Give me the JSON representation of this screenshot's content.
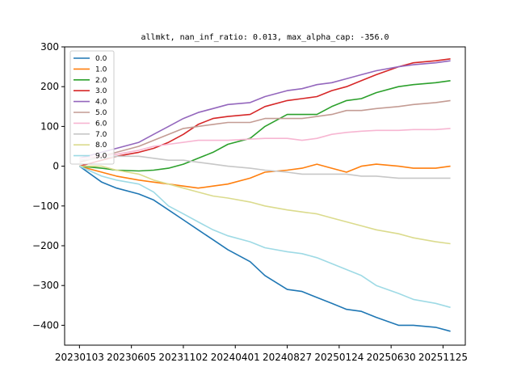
{
  "chart_data": {
    "type": "line",
    "title": "allmkt, nan_inf_ratio: 0.013, max_alpha_cap: -356.0",
    "xlabel": "",
    "ylabel": "",
    "x": [
      0,
      3,
      5,
      8,
      10,
      12,
      14,
      16,
      18,
      20,
      23,
      25,
      28,
      30,
      32,
      34,
      36,
      38,
      40,
      43,
      45,
      48,
      50
    ],
    "xlim": [
      -2,
      52
    ],
    "ylim": [
      -450,
      300
    ],
    "xticks": [
      0,
      7,
      14,
      21,
      28,
      35,
      42,
      49
    ],
    "xtick_labels": [
      "20230103",
      "20230605",
      "20231102",
      "20240401",
      "20240827",
      "20250124",
      "20250630",
      "20251125"
    ],
    "yticks": [
      -400,
      -300,
      -200,
      -100,
      0,
      100,
      200,
      300
    ],
    "legend": {
      "position": "top-left"
    },
    "grid": false,
    "series": [
      {
        "name": "0.0",
        "color": "#1f77b4",
        "values": [
          0,
          -40,
          -55,
          -70,
          -85,
          -110,
          -135,
          -160,
          -185,
          -210,
          -240,
          -275,
          -310,
          -315,
          -330,
          -345,
          -360,
          -365,
          -380,
          -400,
          -400,
          -405,
          -415
        ]
      },
      {
        "name": "1.0",
        "color": "#ff7f0e",
        "values": [
          0,
          -15,
          -25,
          -35,
          -40,
          -45,
          -50,
          -55,
          -50,
          -45,
          -30,
          -15,
          -10,
          -5,
          5,
          -5,
          -15,
          0,
          5,
          0,
          -5,
          -5,
          0
        ]
      },
      {
        "name": "2.0",
        "color": "#2ca02c",
        "values": [
          0,
          -5,
          -10,
          -12,
          -10,
          -5,
          5,
          20,
          35,
          55,
          70,
          100,
          130,
          130,
          130,
          150,
          165,
          170,
          185,
          200,
          205,
          210,
          215
        ]
      },
      {
        "name": "3.0",
        "color": "#d62728",
        "values": [
          0,
          15,
          25,
          35,
          45,
          60,
          80,
          105,
          120,
          125,
          130,
          150,
          165,
          170,
          175,
          190,
          200,
          215,
          230,
          250,
          260,
          265,
          270
        ]
      },
      {
        "name": "4.0",
        "color": "#9467bd",
        "values": [
          20,
          35,
          45,
          60,
          80,
          100,
          120,
          135,
          145,
          155,
          160,
          175,
          190,
          195,
          205,
          210,
          220,
          230,
          240,
          250,
          255,
          260,
          265
        ]
      },
      {
        "name": "5.0",
        "color": "#c49c94",
        "values": [
          10,
          25,
          35,
          50,
          65,
          80,
          95,
          100,
          105,
          110,
          110,
          120,
          120,
          120,
          125,
          130,
          140,
          140,
          145,
          150,
          155,
          160,
          165
        ]
      },
      {
        "name": "6.0",
        "color": "#f7b6d2",
        "values": [
          20,
          25,
          30,
          40,
          50,
          55,
          60,
          65,
          65,
          65,
          68,
          70,
          70,
          65,
          70,
          80,
          85,
          88,
          90,
          90,
          92,
          92,
          95
        ]
      },
      {
        "name": "7.0",
        "color": "#c7c7c7",
        "values": [
          15,
          20,
          25,
          25,
          20,
          15,
          15,
          10,
          5,
          0,
          -5,
          -10,
          -15,
          -20,
          -20,
          -20,
          -20,
          -25,
          -25,
          -30,
          -30,
          -30,
          -30
        ]
      },
      {
        "name": "8.0",
        "color": "#dbdb8d",
        "values": [
          0,
          0,
          -10,
          -20,
          -35,
          -45,
          -55,
          -65,
          -75,
          -80,
          -90,
          -100,
          -110,
          -115,
          -120,
          -130,
          -140,
          -150,
          -160,
          -170,
          -180,
          -190,
          -195
        ]
      },
      {
        "name": "9.0",
        "color": "#9edae5",
        "values": [
          0,
          -25,
          -35,
          -45,
          -65,
          -100,
          -120,
          -140,
          -160,
          -175,
          -190,
          -205,
          -215,
          -220,
          -230,
          -245,
          -260,
          -275,
          -300,
          -320,
          -335,
          -345,
          -355
        ]
      }
    ]
  }
}
